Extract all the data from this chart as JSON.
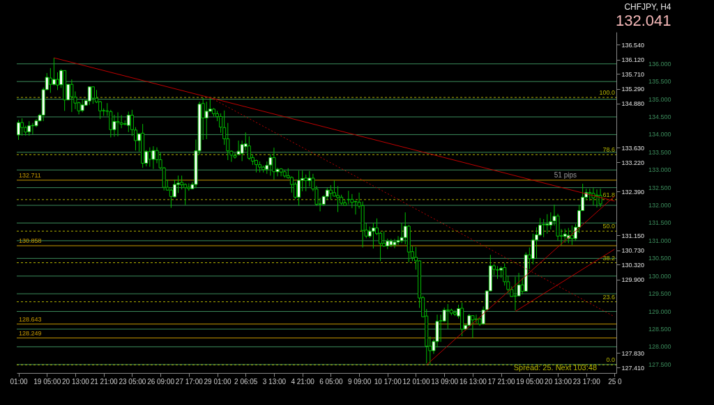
{
  "chart_data": {
    "type": "candlestick",
    "title": "CHFJPY, H4",
    "subtitle": "132.041",
    "categories": [
      "01:00",
      null,
      null,
      null,
      null,
      null,
      null,
      null,
      "19 05:00",
      null,
      null,
      null,
      null,
      null,
      null,
      null,
      "20 13:00",
      null,
      null,
      null,
      null,
      null,
      null,
      null,
      "21 21:00",
      null,
      null,
      null,
      null,
      null,
      null,
      null,
      "23 05:00",
      null,
      null,
      null,
      null,
      null,
      null,
      null,
      "26 09:00",
      null,
      null,
      null,
      null,
      null,
      null,
      null,
      "27 17:00",
      null,
      null,
      null,
      null,
      null,
      null,
      null,
      "29 01:00",
      null,
      null,
      null,
      null,
      null,
      null,
      null,
      "2 06:05",
      null,
      null,
      null,
      null,
      null,
      null,
      null,
      "3 13:00",
      null,
      null,
      null,
      null,
      null,
      null,
      null,
      "4 21:00",
      null,
      null,
      null,
      null,
      null,
      null,
      null,
      "6 05:00",
      null,
      null,
      null,
      null,
      null,
      null,
      null,
      "9 09:00",
      null,
      null,
      null,
      null,
      null,
      null,
      null,
      "10 17:00",
      null,
      null,
      null,
      null,
      null,
      null,
      null,
      "12 01:00",
      null,
      null,
      null,
      null,
      null,
      null,
      null,
      "13 09:00",
      null,
      null,
      null,
      null,
      null,
      null,
      null,
      "16 13:00",
      null,
      null,
      null,
      null,
      null,
      null,
      null,
      "17 21:00",
      null,
      null,
      null,
      null,
      null,
      null,
      null,
      "19 05:00",
      null,
      null,
      null,
      null,
      null,
      null,
      null,
      "20 13:00",
      null,
      null,
      null,
      null,
      null,
      null,
      null,
      "23 17:00",
      null,
      null,
      null,
      null,
      null,
      null,
      null,
      "25 0"
    ],
    "ohlc": [
      [
        133.99,
        134.41,
        133.85,
        134.34
      ],
      [
        134.34,
        134.46,
        133.97,
        134.2
      ],
      [
        134.2,
        134.25,
        133.97,
        134.07
      ],
      [
        134.08,
        134.38,
        133.97,
        134.25
      ],
      [
        134.25,
        134.33,
        134.01,
        134.26
      ],
      [
        134.25,
        134.44,
        134.21,
        134.39
      ],
      [
        134.39,
        134.59,
        134.37,
        134.55
      ],
      [
        134.55,
        135.33,
        134.38,
        135.27
      ],
      [
        135.27,
        135.74,
        135.26,
        135.62
      ],
      [
        135.6,
        135.88,
        135.18,
        135.42
      ],
      [
        135.42,
        136.17,
        135.39,
        135.56
      ],
      [
        135.56,
        135.76,
        135.26,
        135.4
      ],
      [
        135.41,
        135.85,
        135.32,
        135.81
      ],
      [
        135.81,
        135.81,
        134.67,
        134.98
      ],
      [
        134.98,
        135.43,
        134.97,
        135.42
      ],
      [
        135.42,
        135.56,
        134.64,
        135.07
      ],
      [
        135.06,
        135.22,
        134.72,
        134.89
      ],
      [
        134.9,
        134.93,
        134.57,
        134.67
      ],
      [
        134.68,
        134.99,
        134.63,
        134.84
      ],
      [
        134.83,
        134.98,
        134.82,
        134.96
      ],
      [
        134.95,
        135.36,
        134.84,
        135.35
      ],
      [
        135.35,
        135.36,
        134.87,
        135.03
      ],
      [
        135.03,
        135.26,
        134.89,
        134.92
      ],
      [
        134.93,
        134.95,
        134.44,
        134.67
      ],
      [
        134.68,
        134.74,
        134.53,
        134.67
      ],
      [
        134.67,
        134.89,
        134.53,
        134.66
      ],
      [
        134.65,
        134.7,
        133.92,
        134.14
      ],
      [
        134.14,
        134.56,
        133.94,
        134.37
      ],
      [
        134.37,
        134.63,
        133.95,
        134.34
      ],
      [
        134.33,
        134.55,
        134.18,
        134.29
      ],
      [
        134.31,
        134.4,
        134.26,
        134.29
      ],
      [
        134.26,
        134.65,
        134.07,
        134.55
      ],
      [
        134.55,
        134.7,
        133.96,
        134.14
      ],
      [
        134.13,
        134.21,
        133.55,
        133.83
      ],
      [
        133.83,
        134.04,
        133.52,
        134.02
      ],
      [
        134.04,
        134.3,
        133.06,
        133.19
      ],
      [
        133.19,
        133.56,
        133.1,
        133.52
      ],
      [
        133.52,
        133.64,
        133.09,
        133.3
      ],
      [
        133.3,
        133.67,
        133.03,
        133.55
      ],
      [
        133.55,
        133.64,
        133.19,
        133.29
      ],
      [
        133.29,
        133.49,
        133.02,
        133.06
      ],
      [
        133.06,
        133.08,
        132.42,
        132.51
      ],
      [
        132.51,
        132.73,
        132.42,
        132.43
      ],
      [
        132.43,
        132.48,
        131.93,
        132.25
      ],
      [
        132.24,
        132.73,
        132.22,
        132.59
      ],
      [
        132.59,
        132.84,
        132.35,
        132.63
      ],
      [
        132.65,
        132.84,
        132.45,
        132.58
      ],
      [
        132.59,
        132.62,
        132.01,
        132.5
      ],
      [
        132.51,
        132.62,
        132.41,
        132.47
      ],
      [
        132.47,
        132.66,
        132.45,
        132.59
      ],
      [
        132.59,
        133.86,
        132.49,
        133.54
      ],
      [
        133.54,
        134.93,
        133.43,
        134.86
      ],
      [
        134.88,
        135.04,
        133.85,
        134.47
      ],
      [
        134.47,
        134.93,
        133.87,
        134.66
      ],
      [
        134.66,
        135.05,
        134.64,
        134.72
      ],
      [
        134.72,
        134.75,
        134.51,
        134.59
      ],
      [
        134.59,
        134.67,
        134.38,
        134.51
      ],
      [
        134.51,
        134.6,
        134.05,
        134.21
      ],
      [
        134.2,
        134.68,
        133.71,
        133.88
      ],
      [
        133.88,
        134.33,
        133.28,
        133.54
      ],
      [
        133.53,
        133.55,
        133.23,
        133.42
      ],
      [
        133.41,
        133.49,
        133.32,
        133.36
      ],
      [
        133.44,
        133.83,
        133.41,
        133.53
      ],
      [
        133.47,
        133.83,
        133.25,
        133.72
      ],
      [
        133.66,
        134.06,
        133.55,
        133.74
      ],
      [
        133.68,
        133.95,
        133.28,
        133.33
      ],
      [
        133.35,
        133.44,
        133.14,
        133.25
      ],
      [
        133.27,
        133.29,
        132.93,
        133.15
      ],
      [
        133.15,
        133.24,
        132.93,
        133.08
      ],
      [
        133.08,
        133.12,
        132.93,
        133.01
      ],
      [
        133.02,
        133.24,
        132.89,
        133.13
      ],
      [
        133.14,
        133.45,
        132.84,
        133.35
      ],
      [
        133.35,
        133.63,
        132.73,
        132.95
      ],
      [
        132.95,
        133.06,
        132.82,
        133.02
      ],
      [
        133.03,
        133.05,
        132.82,
        132.94
      ],
      [
        132.95,
        132.99,
        132.78,
        132.83
      ],
      [
        132.84,
        133.05,
        132.75,
        132.78
      ],
      [
        132.79,
        132.82,
        132.36,
        132.59
      ],
      [
        132.6,
        132.66,
        132.18,
        132.23
      ],
      [
        132.23,
        132.98,
        131.99,
        132.71
      ],
      [
        132.71,
        132.98,
        132.4,
        132.76
      ],
      [
        132.77,
        132.87,
        132.4,
        132.7
      ],
      [
        132.7,
        132.97,
        132.53,
        132.77
      ],
      [
        132.77,
        132.89,
        132.4,
        132.46
      ],
      [
        132.46,
        132.55,
        131.98,
        132.03
      ],
      [
        132.04,
        132.21,
        131.83,
        132.03
      ],
      [
        132.03,
        132.28,
        131.98,
        132.25
      ],
      [
        132.25,
        132.49,
        132.16,
        132.43
      ],
      [
        132.43,
        132.57,
        132.16,
        132.34
      ],
      [
        132.36,
        132.7,
        132.25,
        132.26
      ],
      [
        132.28,
        132.54,
        131.81,
        132.22
      ],
      [
        132.23,
        132.3,
        132.01,
        132.06
      ],
      [
        132.07,
        132.15,
        131.99,
        132
      ],
      [
        132.17,
        132.41,
        132.03,
        132.16
      ],
      [
        132.17,
        132.32,
        131.92,
        132.08
      ],
      [
        132.11,
        132.13,
        131.74,
        132.1
      ],
      [
        132.09,
        132.36,
        131.91,
        131.98
      ],
      [
        131.99,
        132.11,
        130.81,
        131.29
      ],
      [
        131.3,
        131.49,
        131.07,
        131.13
      ],
      [
        131.13,
        131.4,
        131.08,
        131.27
      ],
      [
        131.27,
        131.51,
        130.78,
        131.36
      ],
      [
        131.36,
        131.63,
        131.16,
        131.2
      ],
      [
        131.21,
        131.25,
        130.42,
        130.92
      ],
      [
        130.93,
        131.27,
        130.82,
        130.85
      ],
      [
        130.85,
        131.06,
        130.76,
        130.99
      ],
      [
        130.88,
        131.05,
        130.82,
        130.99
      ],
      [
        130.88,
        131.05,
        130.79,
        130.96
      ],
      [
        130.96,
        131.13,
        130.88,
        131.01
      ],
      [
        131,
        131.5,
        130.93,
        131.09
      ],
      [
        131.09,
        131.8,
        130.9,
        131.41
      ],
      [
        131.41,
        131.45,
        130.39,
        130.68
      ],
      [
        130.69,
        130.84,
        130.42,
        130.52
      ],
      [
        130.53,
        130.82,
        130.18,
        130.43
      ],
      [
        130.43,
        130.45,
        129.1,
        129.38
      ],
      [
        129.39,
        129.44,
        128.84,
        128.85
      ],
      [
        128.87,
        129.07,
        127.53,
        128.02
      ],
      [
        128.02,
        128.29,
        127.49,
        127.89
      ],
      [
        127.89,
        128.21,
        127.8,
        128.15
      ],
      [
        128.15,
        128.91,
        127.98,
        128.72
      ],
      [
        128.74,
        128.91,
        128.14,
        128.73
      ],
      [
        128.73,
        129.11,
        128.7,
        129.04
      ],
      [
        129.04,
        129.21,
        128.51,
        129.03
      ],
      [
        129.04,
        129.08,
        128.89,
        128.95
      ],
      [
        128.97,
        129.04,
        128.87,
        128.92
      ],
      [
        128.87,
        129.19,
        128.8,
        129.08
      ],
      [
        129.09,
        129.25,
        128.3,
        128.5
      ],
      [
        128.5,
        128.62,
        128.46,
        128.61
      ],
      [
        128.61,
        128.93,
        128.59,
        128.88
      ],
      [
        128.88,
        128.89,
        128.25,
        128.76
      ],
      [
        128.79,
        128.91,
        128.67,
        128.77
      ],
      [
        128.79,
        128.81,
        128.59,
        128.64
      ],
      [
        128.65,
        129.14,
        128.62,
        129.04
      ],
      [
        129.05,
        129.6,
        129.04,
        129.58
      ],
      [
        129.58,
        130.6,
        129.57,
        130.29
      ],
      [
        130.29,
        130.34,
        130.03,
        130.19
      ],
      [
        130.18,
        130.28,
        129.92,
        130.17
      ],
      [
        130.17,
        130.27,
        129.95,
        130.22
      ],
      [
        130.24,
        130.36,
        129.73,
        129.84
      ],
      [
        129.84,
        130,
        129.52,
        129.62
      ],
      [
        129.62,
        129.71,
        129.41,
        129.42
      ],
      [
        129.44,
        129.98,
        129.03,
        129.43
      ],
      [
        129.44,
        130.09,
        129.43,
        129.75
      ],
      [
        129.75,
        129.95,
        129.48,
        129.57
      ],
      [
        129.57,
        130.67,
        129.56,
        130.6
      ],
      [
        130.6,
        130.81,
        130.2,
        130.49
      ],
      [
        130.49,
        131.2,
        130.33,
        131.02
      ],
      [
        131.02,
        131.38,
        130.49,
        131.17
      ],
      [
        131.16,
        131.64,
        131.13,
        131.44
      ],
      [
        131.45,
        131.61,
        131.1,
        131.46
      ],
      [
        131.44,
        131.75,
        131.2,
        131.47
      ],
      [
        131.44,
        131.8,
        131.32,
        131.54
      ],
      [
        131.56,
        132.02,
        131.43,
        131.69
      ],
      [
        131.7,
        131.76,
        131,
        131.13
      ],
      [
        131.14,
        131.33,
        130.86,
        131.13
      ],
      [
        131.12,
        131.34,
        130.94,
        131.19
      ],
      [
        131.06,
        131.36,
        130.93,
        131.15
      ],
      [
        131.15,
        131.43,
        130.88,
        131.06
      ],
      [
        131.06,
        131.47,
        131,
        131.38
      ],
      [
        131.38,
        132.01,
        131.22,
        131.85
      ],
      [
        131.85,
        132.61,
        131.84,
        132.23
      ],
      [
        132.23,
        132.47,
        132.14,
        132.36
      ],
      [
        132.36,
        132.47,
        132.13,
        132.34
      ],
      [
        132.34,
        132.49,
        132,
        132.21
      ],
      [
        132.29,
        132.45,
        131.94,
        132.26
      ],
      [
        132.28,
        132.47,
        131.95,
        132.04
      ],
      null,
      null,
      null,
      null
    ],
    "series": [
      {
        "type": "line",
        "color": "#c00000",
        "values": [
          null,
          null,
          null,
          null,
          null,
          null,
          null,
          null,
          null,
          null,
          136.17,
          null,
          null,
          null,
          null,
          null,
          null,
          null,
          null,
          null,
          null,
          null,
          null,
          null,
          null,
          null,
          null,
          null,
          null,
          null,
          null,
          null,
          null,
          null,
          null,
          null,
          null,
          null,
          null,
          null,
          null,
          null,
          null,
          null,
          null,
          null,
          null,
          null,
          null,
          null,
          null,
          null,
          null,
          null,
          null,
          null,
          null,
          null,
          null,
          null,
          null,
          null,
          null,
          null,
          null,
          null,
          null,
          null,
          null,
          null,
          null,
          null,
          null,
          null,
          null,
          null,
          null,
          null,
          null,
          null,
          null,
          null,
          null,
          null,
          null,
          null,
          null,
          null,
          null,
          null,
          null,
          null,
          null,
          null,
          null,
          null,
          null,
          null,
          null,
          null,
          null,
          null,
          null,
          null,
          null,
          null,
          null,
          null,
          null,
          null,
          null,
          null,
          null,
          null,
          null,
          null,
          null,
          null,
          null,
          null,
          null,
          null,
          null,
          null,
          null,
          null,
          null,
          null,
          null,
          null,
          null,
          null,
          null,
          null,
          null,
          null,
          null,
          null,
          null,
          null,
          null,
          null,
          null,
          null,
          null,
          null,
          null,
          null,
          null,
          null,
          null,
          null,
          null,
          null,
          null,
          null,
          null,
          null,
          null,
          null,
          null,
          null,
          null,
          null,
          null,
          null,
          null,
          null,
          132.12
        ]
      },
      {
        "type": "line",
        "color": "#c00000",
        "line_style": "dotted",
        "values": [
          null,
          null,
          null,
          null,
          null,
          null,
          null,
          null,
          null,
          null,
          null,
          null,
          null,
          null,
          null,
          null,
          null,
          null,
          null,
          null,
          null,
          null,
          null,
          null,
          null,
          null,
          null,
          null,
          null,
          null,
          null,
          null,
          null,
          null,
          null,
          null,
          null,
          null,
          null,
          null,
          null,
          null,
          null,
          null,
          null,
          null,
          null,
          null,
          null,
          null,
          null,
          null,
          null,
          null,
          135.05,
          null,
          null,
          null,
          null,
          null,
          null,
          null,
          null,
          null,
          null,
          null,
          null,
          null,
          null,
          null,
          null,
          null,
          null,
          null,
          null,
          null,
          null,
          null,
          null,
          null,
          null,
          null,
          null,
          null,
          null,
          null,
          null,
          null,
          null,
          null,
          null,
          null,
          null,
          null,
          null,
          null,
          null,
          null,
          null,
          null,
          null,
          null,
          null,
          null,
          null,
          null,
          null,
          null,
          null,
          null,
          null,
          null,
          null,
          null,
          null,
          null,
          null,
          null,
          null,
          null,
          null,
          null,
          null,
          null,
          null,
          null,
          null,
          null,
          null,
          null,
          null,
          null,
          null,
          null,
          null,
          null,
          null,
          null,
          null,
          null,
          null,
          null,
          null,
          null,
          null,
          null,
          null,
          null,
          null,
          null,
          null,
          null,
          null,
          null,
          null,
          null,
          null,
          null,
          null,
          null,
          null,
          null,
          null,
          null,
          null,
          null,
          null,
          null,
          128.85
        ]
      },
      {
        "type": "line",
        "color": "#c00000",
        "values": [
          null,
          null,
          null,
          null,
          null,
          null,
          null,
          null,
          null,
          null,
          null,
          null,
          null,
          null,
          null,
          null,
          null,
          null,
          null,
          null,
          null,
          null,
          null,
          null,
          null,
          null,
          null,
          null,
          null,
          null,
          null,
          null,
          null,
          null,
          null,
          null,
          null,
          null,
          null,
          null,
          null,
          null,
          null,
          null,
          null,
          null,
          null,
          null,
          null,
          null,
          null,
          null,
          null,
          null,
          null,
          null,
          null,
          null,
          null,
          null,
          null,
          null,
          null,
          null,
          null,
          null,
          null,
          null,
          null,
          null,
          null,
          null,
          null,
          null,
          null,
          null,
          null,
          null,
          null,
          null,
          null,
          null,
          null,
          null,
          null,
          null,
          null,
          null,
          null,
          null,
          null,
          null,
          null,
          null,
          null,
          null,
          null,
          null,
          null,
          null,
          null,
          null,
          null,
          null,
          null,
          null,
          null,
          null,
          null,
          null,
          null,
          null,
          null,
          null,
          null,
          127.49,
          null,
          null,
          null,
          null,
          null,
          null,
          null,
          null,
          null,
          null,
          null,
          null,
          null,
          null,
          null,
          null,
          null,
          null,
          null,
          null,
          null,
          null,
          null,
          null,
          null,
          null,
          null,
          null,
          null,
          null,
          null,
          null,
          null,
          null,
          null,
          null,
          null,
          null,
          null,
          null,
          null,
          null,
          null,
          null,
          null,
          null,
          null,
          null,
          null,
          null,
          null,
          null,
          132.26
        ]
      },
      {
        "type": "line",
        "color": "#c00000",
        "values": [
          null,
          null,
          null,
          null,
          null,
          null,
          null,
          null,
          null,
          null,
          null,
          null,
          null,
          null,
          null,
          null,
          null,
          null,
          null,
          null,
          null,
          null,
          null,
          null,
          null,
          null,
          null,
          null,
          null,
          null,
          null,
          null,
          null,
          null,
          null,
          null,
          null,
          null,
          null,
          null,
          null,
          null,
          null,
          null,
          null,
          null,
          null,
          null,
          null,
          null,
          null,
          null,
          null,
          null,
          null,
          null,
          null,
          null,
          null,
          null,
          null,
          null,
          null,
          null,
          null,
          null,
          null,
          null,
          null,
          null,
          null,
          null,
          null,
          null,
          null,
          null,
          null,
          null,
          null,
          null,
          null,
          null,
          null,
          null,
          null,
          null,
          null,
          null,
          null,
          null,
          null,
          null,
          null,
          null,
          null,
          null,
          null,
          null,
          null,
          null,
          null,
          null,
          null,
          null,
          null,
          null,
          null,
          null,
          null,
          null,
          null,
          null,
          null,
          null,
          null,
          null,
          null,
          null,
          null,
          null,
          null,
          null,
          null,
          null,
          null,
          null,
          null,
          null,
          null,
          null,
          null,
          null,
          null,
          null,
          null,
          null,
          null,
          null,
          null,
          null,
          129.0,
          null,
          null,
          null,
          null,
          null,
          null,
          null,
          null,
          null,
          null,
          null,
          null,
          null,
          null,
          null,
          null,
          null,
          null,
          null,
          null,
          null,
          null,
          null,
          null,
          null,
          null,
          null,
          130.76
        ]
      }
    ],
    "ylim": [
      127.26,
      136.9
    ],
    "yticks": [
      {
        "value": 136.54,
        "label": "136.540"
      },
      {
        "value": 136.12,
        "label": "136.120"
      },
      {
        "value": 135.71,
        "label": "135.710"
      },
      {
        "value": 135.29,
        "label": "135.290"
      },
      {
        "value": 134.88,
        "label": "134.880"
      },
      {
        "value": 133.63,
        "label": "133.630"
      },
      {
        "value": 133.22,
        "label": "133.220"
      },
      {
        "value": 132.39,
        "label": "132.390"
      },
      {
        "value": 131.15,
        "label": "131.150"
      },
      {
        "value": 130.73,
        "label": "130.730"
      },
      {
        "value": 130.32,
        "label": "130.320"
      },
      {
        "value": 129.9,
        "label": "129.900"
      },
      {
        "value": 127.83,
        "label": "127.830"
      },
      {
        "value": 127.41,
        "label": "127.410"
      }
    ],
    "ref_lines": [
      {
        "axis": "y",
        "value": 136.0,
        "label": "136.000",
        "color": "#3c8c5c"
      },
      {
        "axis": "y",
        "value": 135.5,
        "label": "135.500",
        "color": "#3c8c5c"
      },
      {
        "axis": "y",
        "value": 135.0,
        "label": "135.000",
        "color": "#3c8c5c"
      },
      {
        "axis": "y",
        "value": 134.5,
        "label": "134.500",
        "color": "#3c8c5c"
      },
      {
        "axis": "y",
        "value": 134.0,
        "label": "134.000",
        "color": "#3c8c5c"
      },
      {
        "axis": "y",
        "value": 133.5,
        "label": "133.500",
        "color": "#3c8c5c"
      },
      {
        "axis": "y",
        "value": 133.0,
        "label": "133.000",
        "color": "#3c8c5c"
      },
      {
        "axis": "y",
        "value": 132.5,
        "label": "132.500",
        "color": "#3c8c5c"
      },
      {
        "axis": "y",
        "value": 132.0,
        "label": "132.000",
        "color": "#3c8c5c"
      },
      {
        "axis": "y",
        "value": 131.5,
        "label": "131.500",
        "color": "#3c8c5c"
      },
      {
        "axis": "y",
        "value": 131.0,
        "label": "131.000",
        "color": "#3c8c5c"
      },
      {
        "axis": "y",
        "value": 130.5,
        "label": "130.500",
        "color": "#3c8c5c"
      },
      {
        "axis": "y",
        "value": 130.0,
        "label": "130.000",
        "color": "#3c8c5c"
      },
      {
        "axis": "y",
        "value": 129.5,
        "label": "129.500",
        "color": "#3c8c5c"
      },
      {
        "axis": "y",
        "value": 129.0,
        "label": "129.000",
        "color": "#3c8c5c"
      },
      {
        "axis": "y",
        "value": 128.5,
        "label": "128.500",
        "color": "#3c8c5c"
      },
      {
        "axis": "y",
        "value": 128.0,
        "label": "128.000",
        "color": "#3c8c5c"
      },
      {
        "axis": "y",
        "value": 127.5,
        "label": "127.500",
        "color": "#3c8c5c"
      },
      {
        "axis": "y",
        "value": 132.711,
        "label": "132.711",
        "color": "#c89a00"
      },
      {
        "axis": "y",
        "value": 130.858,
        "label": "130.858",
        "color": "#c89a00"
      },
      {
        "axis": "y",
        "value": 128.643,
        "label": "128.643",
        "color": "#c89a00"
      },
      {
        "axis": "y",
        "value": 128.249,
        "label": "128.249",
        "color": "#c89a00"
      },
      {
        "axis": "y2",
        "value": 100.0,
        "label": "100.0",
        "color": "#b4b400",
        "line_style": "dashed"
      },
      {
        "axis": "y2",
        "value": 78.6,
        "label": "78.6",
        "color": "#b4b400",
        "line_style": "dashed"
      },
      {
        "axis": "y2",
        "value": 61.8,
        "label": "61.8",
        "color": "#b4b400",
        "line_style": "dashed"
      },
      {
        "axis": "y2",
        "value": 50.0,
        "label": "50.0",
        "color": "#b4b400",
        "line_style": "dashed"
      },
      {
        "axis": "y2",
        "value": 38.2,
        "label": "38.2",
        "color": "#b4b400",
        "line_style": "dashed"
      },
      {
        "axis": "y2",
        "value": 23.6,
        "label": "23.6",
        "color": "#b4b400",
        "line_style": "dashed"
      },
      {
        "axis": "y2",
        "value": 0.0,
        "label": "0.0",
        "color": "#b4b400",
        "line_style": "dashed"
      }
    ],
    "y2lim": [
      -3.04,
      124.47
    ],
    "annotations": [
      "51 pips",
      "Spread: 25. Next 103:48"
    ]
  }
}
